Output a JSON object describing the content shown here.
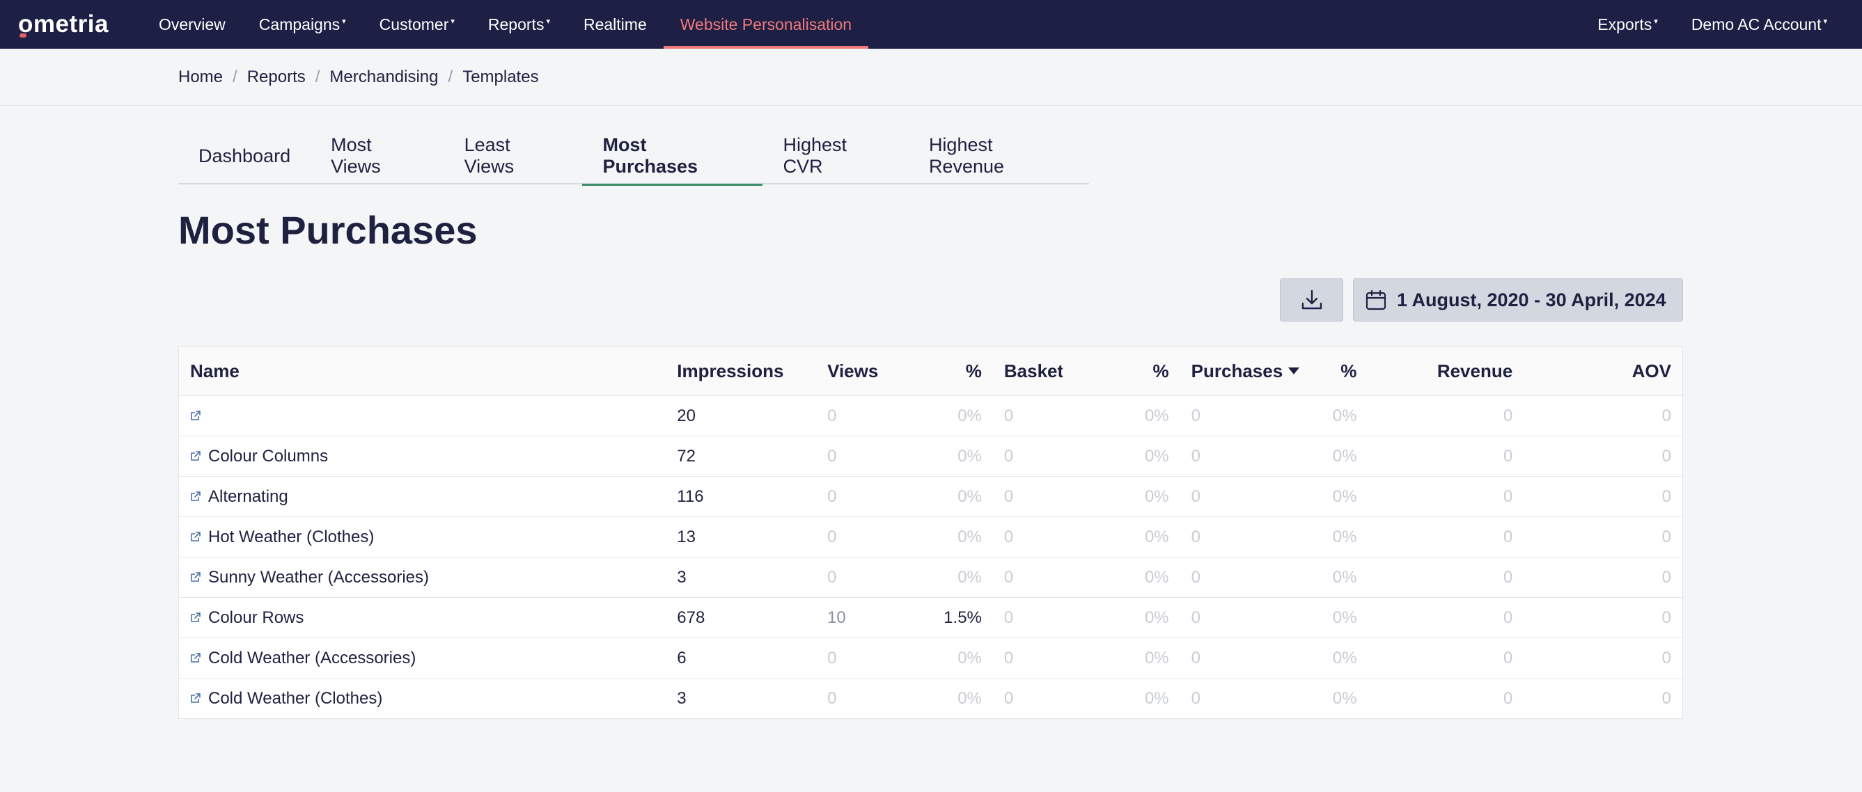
{
  "app": {
    "logo_text": "ometria"
  },
  "topnav": {
    "left_items": [
      {
        "label": "Overview",
        "dropdown": false,
        "active": false
      },
      {
        "label": "Campaigns",
        "dropdown": true,
        "active": false
      },
      {
        "label": "Customer",
        "dropdown": true,
        "active": false
      },
      {
        "label": "Reports",
        "dropdown": true,
        "active": false
      },
      {
        "label": "Realtime",
        "dropdown": false,
        "active": false
      },
      {
        "label": "Website Personalisation",
        "dropdown": false,
        "active": true
      }
    ],
    "right_items": [
      {
        "label": "Exports",
        "dropdown": true
      },
      {
        "label": "Demo AC Account",
        "dropdown": true
      }
    ],
    "caret": "▾"
  },
  "breadcrumb": [
    "Home",
    "Reports",
    "Merchandising",
    "Templates"
  ],
  "breadcrumb_separator": "/",
  "tabs": [
    {
      "label": "Dashboard",
      "active": false
    },
    {
      "label": "Most Views",
      "active": false
    },
    {
      "label": "Least Views",
      "active": false
    },
    {
      "label": "Most Purchases",
      "active": true
    },
    {
      "label": "Highest CVR",
      "active": false
    },
    {
      "label": "Highest Revenue",
      "active": false
    }
  ],
  "page_title": "Most Purchases",
  "toolbar": {
    "download_icon": "download-icon",
    "date_range": "1 August, 2020 - 30 April, 2024",
    "date_icon": "calendar-icon"
  },
  "table": {
    "columns": [
      "Name",
      "Impressions",
      "Views",
      "%",
      "Basket",
      "%",
      "Purchases",
      "%",
      "Revenue",
      "AOV"
    ],
    "sorted_column": "Purchases",
    "rows": [
      {
        "name": "",
        "impressions": "20",
        "views": "0",
        "views_pct": "0%",
        "basket": "0",
        "basket_pct": "0%",
        "purchases": "0",
        "purchases_pct": "0%",
        "revenue": "0",
        "aov": "0"
      },
      {
        "name": "Colour Columns",
        "impressions": "72",
        "views": "0",
        "views_pct": "0%",
        "basket": "0",
        "basket_pct": "0%",
        "purchases": "0",
        "purchases_pct": "0%",
        "revenue": "0",
        "aov": "0"
      },
      {
        "name": "Alternating",
        "impressions": "116",
        "views": "0",
        "views_pct": "0%",
        "basket": "0",
        "basket_pct": "0%",
        "purchases": "0",
        "purchases_pct": "0%",
        "revenue": "0",
        "aov": "0"
      },
      {
        "name": "Hot Weather (Clothes)",
        "impressions": "13",
        "views": "0",
        "views_pct": "0%",
        "basket": "0",
        "basket_pct": "0%",
        "purchases": "0",
        "purchases_pct": "0%",
        "revenue": "0",
        "aov": "0"
      },
      {
        "name": "Sunny Weather (Accessories)",
        "impressions": "3",
        "views": "0",
        "views_pct": "0%",
        "basket": "0",
        "basket_pct": "0%",
        "purchases": "0",
        "purchases_pct": "0%",
        "revenue": "0",
        "aov": "0"
      },
      {
        "name": "Colour Rows",
        "impressions": "678",
        "views": "10",
        "views_pct": "1.5%",
        "basket": "0",
        "basket_pct": "0%",
        "purchases": "0",
        "purchases_pct": "0%",
        "revenue": "0",
        "aov": "0"
      },
      {
        "name": "Cold Weather (Accessories)",
        "impressions": "6",
        "views": "0",
        "views_pct": "0%",
        "basket": "0",
        "basket_pct": "0%",
        "purchases": "0",
        "purchases_pct": "0%",
        "revenue": "0",
        "aov": "0"
      },
      {
        "name": "Cold Weather (Clothes)",
        "impressions": "3",
        "views": "0",
        "views_pct": "0%",
        "basket": "0",
        "basket_pct": "0%",
        "purchases": "0",
        "purchases_pct": "0%",
        "revenue": "0",
        "aov": "0"
      }
    ]
  },
  "colors": {
    "nav_bg": "#1e1f45",
    "nav_active": "#ef7a78",
    "tab_active_underline": "#3e8f6b",
    "button_bg": "#d3d8e0"
  }
}
